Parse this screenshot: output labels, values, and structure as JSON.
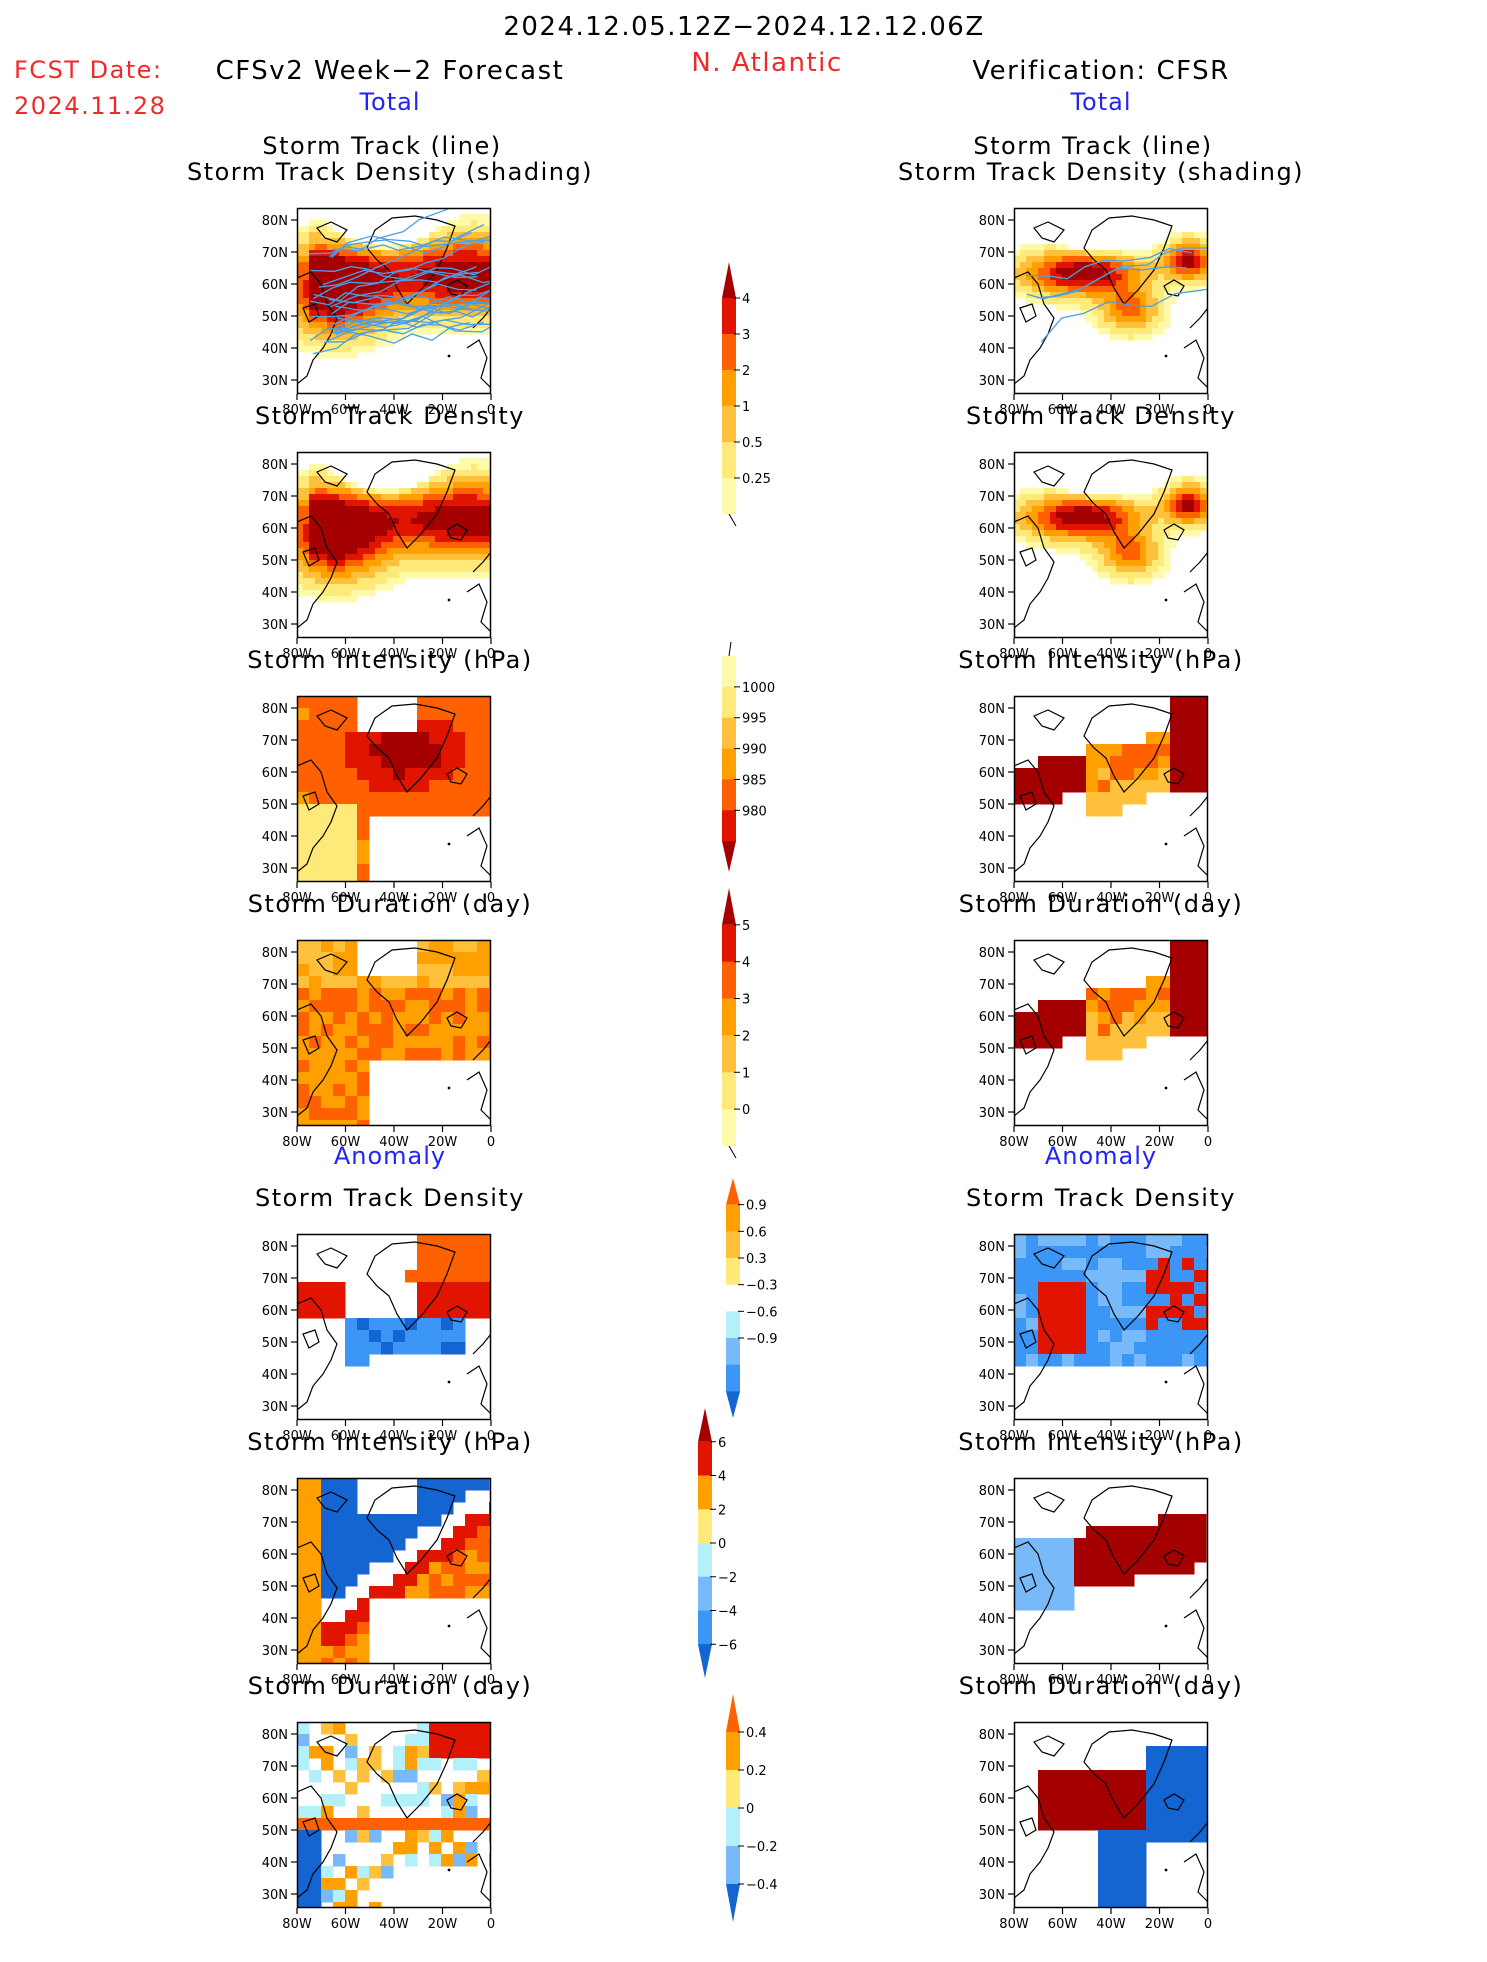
{
  "header": {
    "date_range": "2024.12.05.12Z−2024.12.12.06Z",
    "fcst_label": "FCST Date:",
    "fcst_date": "2024.11.28",
    "left_title": "CFSv2 Week−2 Forecast",
    "region": "N. Atlantic",
    "right_title": "Verification: CFSR",
    "total_left": "Total",
    "total_right": "Total",
    "anomaly_left": "Anomaly",
    "anomaly_right": "Anomaly"
  },
  "panels": {
    "p1_line1": "Storm Track (line)",
    "p1_line2": "Storm Track Density (shading)",
    "p2": "Storm Track Density",
    "p3": "Storm Intensity (hPa)",
    "p4": "Storm Duration (day)",
    "p5": "Storm Track Density",
    "p6": "Storm Intensity (hPa)",
    "p7": "Storm Duration (day)"
  },
  "colors": {
    "header_red": "#f02a2a",
    "header_blue": "#2323f5",
    "scale_warm": [
      "#fffaaa",
      "#ffe978",
      "#ffc03c",
      "#ffa000",
      "#ff6000",
      "#e11400",
      "#a50000"
    ],
    "scale_anom": [
      "#1464d2",
      "#3c96f5",
      "#78b9fa",
      "#b4f0fa",
      "#ffffff",
      "#ffe978",
      "#ffc03c",
      "#ffa000",
      "#ff6000",
      "#e11400",
      "#a50000"
    ]
  },
  "chart_data": [
    {
      "type": "heatmap",
      "title": "Storm Track (line) / Storm Track Density (shading)",
      "column": "CFSv2 Week−2 Forecast",
      "x_ticks": [
        "80W",
        "60W",
        "40W",
        "20W",
        "0"
      ],
      "y_ticks": [
        "30N",
        "40N",
        "50N",
        "60N",
        "70N",
        "80N"
      ],
      "xlim": [
        -80,
        0
      ],
      "ylim": [
        25,
        85
      ],
      "overlay": "storm track lines"
    },
    {
      "type": "heatmap",
      "title": "Storm Track (line) / Storm Track Density (shading)",
      "column": "Verification: CFSR",
      "x_ticks": [
        "80W",
        "60W",
        "40W",
        "20W",
        "0"
      ],
      "y_ticks": [
        "30N",
        "40N",
        "50N",
        "60N",
        "70N",
        "80N"
      ],
      "xlim": [
        -80,
        0
      ],
      "ylim": [
        25,
        85
      ],
      "overlay": "storm track lines"
    },
    {
      "type": "heatmap",
      "title": "Storm Track Density",
      "column": "CFSv2 Week−2 Forecast",
      "x_ticks": [
        "80W",
        "60W",
        "40W",
        "20W",
        "0"
      ],
      "y_ticks": [
        "30N",
        "40N",
        "50N",
        "60N",
        "70N",
        "80N"
      ]
    },
    {
      "type": "heatmap",
      "title": "Storm Track Density",
      "column": "Verification: CFSR",
      "x_ticks": [
        "80W",
        "60W",
        "40W",
        "20W",
        "0"
      ],
      "y_ticks": [
        "30N",
        "40N",
        "50N",
        "60N",
        "70N",
        "80N"
      ]
    },
    {
      "type": "heatmap",
      "title": "Storm Intensity (hPa)",
      "column": "CFSv2 Week−2 Forecast",
      "x_ticks": [
        "80W",
        "60W",
        "40W",
        "20W",
        "0"
      ],
      "y_ticks": [
        "30N",
        "40N",
        "50N",
        "60N",
        "70N",
        "80N"
      ]
    },
    {
      "type": "heatmap",
      "title": "Storm Intensity (hPa)",
      "column": "Verification: CFSR",
      "x_ticks": [
        "80W",
        "60W",
        "40W",
        "20W",
        "0"
      ],
      "y_ticks": [
        "30N",
        "40N",
        "50N",
        "60N",
        "70N",
        "80N"
      ]
    },
    {
      "type": "heatmap",
      "title": "Storm Duration (day)",
      "column": "CFSv2 Week−2 Forecast",
      "x_ticks": [
        "80W",
        "60W",
        "40W",
        "20W",
        "0"
      ],
      "y_ticks": [
        "30N",
        "40N",
        "50N",
        "60N",
        "70N",
        "80N"
      ]
    },
    {
      "type": "heatmap",
      "title": "Storm Duration (day)",
      "column": "Verification: CFSR",
      "x_ticks": [
        "80W",
        "60W",
        "40W",
        "20W",
        "0"
      ],
      "y_ticks": [
        "30N",
        "40N",
        "50N",
        "60N",
        "70N",
        "80N"
      ]
    },
    {
      "type": "heatmap",
      "title": "Storm Track Density (Anomaly)",
      "column": "CFSv2 Week−2 Forecast",
      "x_ticks": [
        "80W",
        "60W",
        "40W",
        "20W",
        "0"
      ],
      "y_ticks": [
        "30N",
        "40N",
        "50N",
        "60N",
        "70N",
        "80N"
      ]
    },
    {
      "type": "heatmap",
      "title": "Storm Track Density (Anomaly)",
      "column": "Verification: CFSR",
      "x_ticks": [
        "80W",
        "60W",
        "40W",
        "20W",
        "0"
      ],
      "y_ticks": [
        "30N",
        "40N",
        "50N",
        "60N",
        "70N",
        "80N"
      ]
    },
    {
      "type": "heatmap",
      "title": "Storm Intensity (hPa) (Anomaly)",
      "column": "CFSv2 Week−2 Forecast",
      "x_ticks": [
        "80W",
        "60W",
        "40W",
        "20W",
        "0"
      ],
      "y_ticks": [
        "30N",
        "40N",
        "50N",
        "60N",
        "70N",
        "80N"
      ]
    },
    {
      "type": "heatmap",
      "title": "Storm Intensity (hPa) (Anomaly)",
      "column": "Verification: CFSR",
      "x_ticks": [
        "80W",
        "60W",
        "40W",
        "20W",
        "0"
      ],
      "y_ticks": [
        "30N",
        "40N",
        "50N",
        "60N",
        "70N",
        "80N"
      ]
    },
    {
      "type": "heatmap",
      "title": "Storm Duration (day) (Anomaly)",
      "column": "CFSv2 Week−2 Forecast",
      "x_ticks": [
        "80W",
        "60W",
        "40W",
        "20W",
        "0"
      ],
      "y_ticks": [
        "30N",
        "40N",
        "50N",
        "60N",
        "70N",
        "80N"
      ]
    },
    {
      "type": "heatmap",
      "title": "Storm Duration (day) (Anomaly)",
      "column": "Verification: CFSR",
      "x_ticks": [
        "80W",
        "60W",
        "40W",
        "20W",
        "0"
      ],
      "y_ticks": [
        "30N",
        "40N",
        "50N",
        "60N",
        "70N",
        "80N"
      ]
    }
  ],
  "colorbars": {
    "density": {
      "labels": [
        "4",
        "3",
        "2",
        "1",
        "0.5",
        "0.25"
      ],
      "colors_top_to_bottom": [
        "#a50000",
        "#e11400",
        "#ff6000",
        "#ffa000",
        "#ffc03c",
        "#ffe978",
        "#fffaaa"
      ]
    },
    "intensity": {
      "labels": [
        "1000",
        "995",
        "990",
        "985",
        "980"
      ],
      "colors_top_to_bottom": [
        "#fffaaa",
        "#ffe978",
        "#ffc03c",
        "#ffa000",
        "#ff6000",
        "#e11400",
        "#a50000"
      ]
    },
    "duration": {
      "labels": [
        "5",
        "4",
        "3",
        "2",
        "1",
        "0"
      ],
      "colors_top_to_bottom": [
        "#a50000",
        "#e11400",
        "#ff6000",
        "#ffa000",
        "#ffc03c",
        "#ffe978",
        "#fffaaa"
      ]
    },
    "density_anom": {
      "labels": [
        "0.9",
        "0.6",
        "0.3",
        "−0.3",
        "−0.6",
        "−0.9"
      ],
      "colors_top_to_bottom": [
        "#ff6000",
        "#ffa000",
        "#ffc03c",
        "#ffe978",
        "#ffffff",
        "#b4f0fa",
        "#78b9fa",
        "#3c96f5",
        "#1464d2"
      ]
    },
    "intensity_anom": {
      "labels": [
        "6",
        "4",
        "2",
        "0",
        "−2",
        "−4",
        "−6"
      ],
      "colors_top_to_bottom": [
        "#a50000",
        "#e11400",
        "#ffa000",
        "#ffe978",
        "#b4f0fa",
        "#78b9fa",
        "#3c96f5",
        "#1464d2"
      ]
    },
    "duration_anom": {
      "labels": [
        "0.4",
        "0.2",
        "0",
        "−0.2",
        "−0.4"
      ],
      "colors_top_to_bottom": [
        "#ff6000",
        "#ffa000",
        "#ffe978",
        "#b4f0fa",
        "#78b9fa",
        "#1464d2"
      ]
    }
  }
}
